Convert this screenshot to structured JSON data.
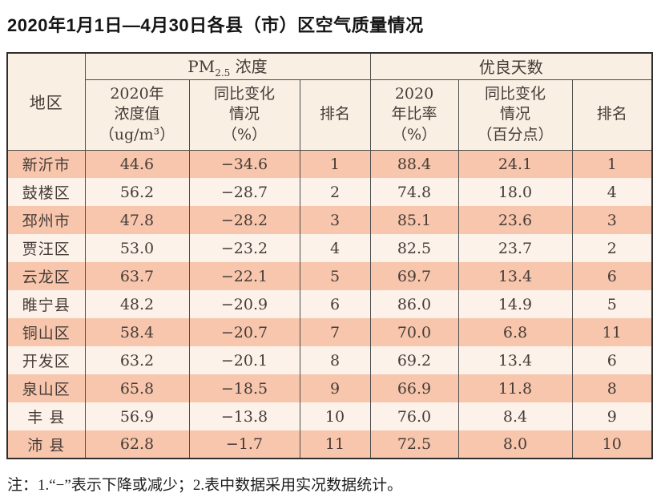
{
  "title": "2020年1月1日—4月30日各县（市）区空气质量情况",
  "footnote": "注：1.“−”表示下降或减少；2.表中数据采用实况数据统计。",
  "colors": {
    "header_bg": "#faefe3",
    "row_salmon": "#f7c6ac",
    "row_light": "#fdf2ea",
    "outer_border": "#2e2e2e",
    "grid_line": "#4d4d4d",
    "text": "#463c38"
  },
  "table": {
    "headers": {
      "region": "地区",
      "pm25_prefix": "PM",
      "pm25_sub": "2.5",
      "pm25_suffix": " 浓度",
      "good_days_group": "优良天数",
      "pm25_value": "2020年\n浓度值\n（ug/m³）",
      "pm25_change": "同比变化\n情况\n（%）",
      "pm25_rank": "排名",
      "good_rate": "2020\n年比率\n（%）",
      "good_change": "同比变化\n情况\n（百分点）",
      "good_rank": "排名"
    },
    "rows": [
      {
        "region": "新沂市",
        "pm25_value": "44.6",
        "pm25_change": "−34.6",
        "pm25_rank": "1",
        "good_rate": "88.4",
        "good_change": "24.1",
        "good_rank": "1"
      },
      {
        "region": "鼓楼区",
        "pm25_value": "56.2",
        "pm25_change": "−28.7",
        "pm25_rank": "2",
        "good_rate": "74.8",
        "good_change": "18.0",
        "good_rank": "4"
      },
      {
        "region": "邳州市",
        "pm25_value": "47.8",
        "pm25_change": "−28.2",
        "pm25_rank": "3",
        "good_rate": "85.1",
        "good_change": "23.6",
        "good_rank": "3"
      },
      {
        "region": "贾汪区",
        "pm25_value": "53.0",
        "pm25_change": "−23.2",
        "pm25_rank": "4",
        "good_rate": "82.5",
        "good_change": "23.7",
        "good_rank": "2"
      },
      {
        "region": "云龙区",
        "pm25_value": "63.7",
        "pm25_change": "−22.1",
        "pm25_rank": "5",
        "good_rate": "69.7",
        "good_change": "13.4",
        "good_rank": "6"
      },
      {
        "region": "睢宁县",
        "pm25_value": "48.2",
        "pm25_change": "−20.9",
        "pm25_rank": "6",
        "good_rate": "86.0",
        "good_change": "14.9",
        "good_rank": "5"
      },
      {
        "region": "铜山区",
        "pm25_value": "58.4",
        "pm25_change": "−20.7",
        "pm25_rank": "7",
        "good_rate": "70.0",
        "good_change": "6.8",
        "good_rank": "11"
      },
      {
        "region": "开发区",
        "pm25_value": "63.2",
        "pm25_change": "−20.1",
        "pm25_rank": "8",
        "good_rate": "69.2",
        "good_change": "13.4",
        "good_rank": "6"
      },
      {
        "region": "泉山区",
        "pm25_value": "65.8",
        "pm25_change": "−18.5",
        "pm25_rank": "9",
        "good_rate": "66.9",
        "good_change": "11.8",
        "good_rank": "8"
      },
      {
        "region": "丰 县",
        "pm25_value": "56.9",
        "pm25_change": "−13.8",
        "pm25_rank": "10",
        "good_rate": "76.0",
        "good_change": "8.4",
        "good_rank": "9"
      },
      {
        "region": "沛 县",
        "pm25_value": "62.8",
        "pm25_change": "−1.7",
        "pm25_rank": "11",
        "good_rate": "72.5",
        "good_change": "8.0",
        "good_rank": "10"
      }
    ]
  }
}
